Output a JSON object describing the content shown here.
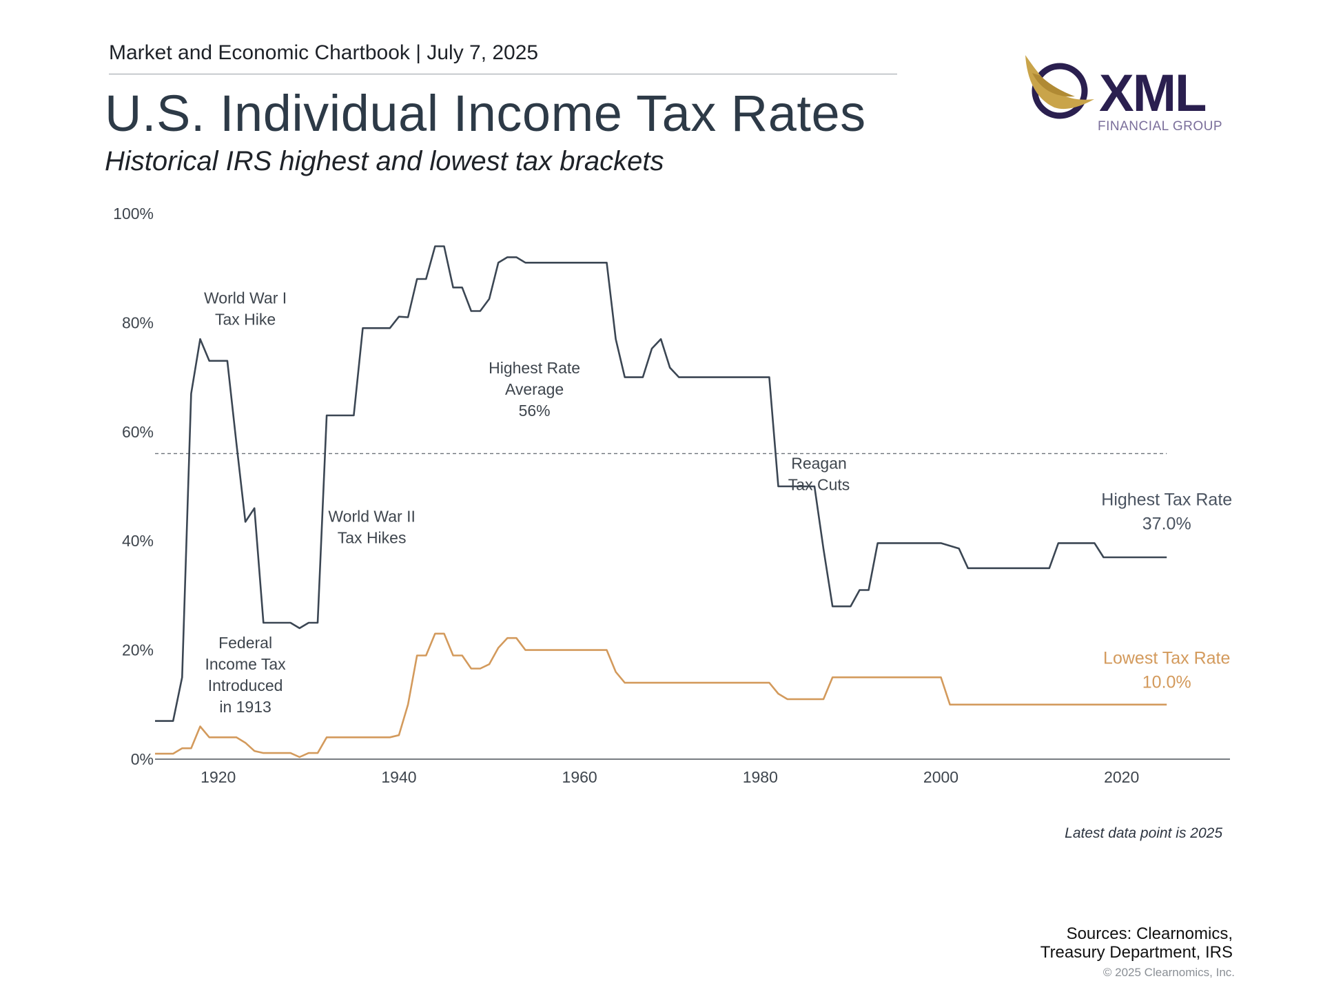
{
  "header": {
    "label": "Market and Economic Chartbook | July 7, 2025",
    "title": "U.S. Individual Income Tax Rates",
    "subtitle": "Historical IRS highest and lowest tax brackets"
  },
  "logo": {
    "word": "XML",
    "sub": "FINANCIAL GROUP",
    "gold": "#c9a44a",
    "navy": "#2a1f4f"
  },
  "footer": {
    "note": "Latest data point is 2025",
    "sources_line1": "Sources: Clearnomics,",
    "sources_line2": "Treasury Department, IRS",
    "copyright": "© 2025 Clearnomics, Inc."
  },
  "chart_data": {
    "type": "line",
    "xlim": [
      1913,
      2032
    ],
    "ylim": [
      0,
      100
    ],
    "x_ticks": [
      1920,
      1940,
      1960,
      1980,
      2000,
      2020
    ],
    "y_ticks": [
      0,
      20,
      40,
      60,
      80,
      100
    ],
    "y_tick_labels": [
      "0%",
      "20%",
      "40%",
      "60%",
      "80%",
      "100%"
    ],
    "grid": false,
    "series": [
      {
        "name": "Highest Tax Rate",
        "end_value_label": "37.0%",
        "color": "#3b4653",
        "points": [
          [
            1913,
            7
          ],
          [
            1915,
            7
          ],
          [
            1916,
            15
          ],
          [
            1917,
            67
          ],
          [
            1918,
            77
          ],
          [
            1919,
            73
          ],
          [
            1921,
            73
          ],
          [
            1922,
            58
          ],
          [
            1923,
            43.5
          ],
          [
            1924,
            46
          ],
          [
            1925,
            25
          ],
          [
            1928,
            25
          ],
          [
            1929,
            24
          ],
          [
            1930,
            25
          ],
          [
            1931,
            25
          ],
          [
            1932,
            63
          ],
          [
            1935,
            63
          ],
          [
            1936,
            79
          ],
          [
            1939,
            79
          ],
          [
            1940,
            81.1
          ],
          [
            1941,
            81
          ],
          [
            1942,
            88
          ],
          [
            1943,
            88
          ],
          [
            1944,
            94
          ],
          [
            1945,
            94
          ],
          [
            1946,
            86.45
          ],
          [
            1947,
            86.45
          ],
          [
            1948,
            82.13
          ],
          [
            1949,
            82.13
          ],
          [
            1950,
            84.36
          ],
          [
            1951,
            91
          ],
          [
            1952,
            92
          ],
          [
            1953,
            92
          ],
          [
            1954,
            91
          ],
          [
            1963,
            91
          ],
          [
            1964,
            77
          ],
          [
            1965,
            70
          ],
          [
            1967,
            70
          ],
          [
            1968,
            75.25
          ],
          [
            1969,
            77
          ],
          [
            1970,
            71.75
          ],
          [
            1971,
            70
          ],
          [
            1981,
            70
          ],
          [
            1982,
            50
          ],
          [
            1986,
            50
          ],
          [
            1987,
            38.5
          ],
          [
            1988,
            28
          ],
          [
            1990,
            28
          ],
          [
            1991,
            31
          ],
          [
            1992,
            31
          ],
          [
            1993,
            39.6
          ],
          [
            2000,
            39.6
          ],
          [
            2002,
            38.6
          ],
          [
            2003,
            35
          ],
          [
            2012,
            35
          ],
          [
            2013,
            39.6
          ],
          [
            2017,
            39.6
          ],
          [
            2018,
            37
          ],
          [
            2025,
            37
          ]
        ]
      },
      {
        "name": "Lowest Tax Rate",
        "end_value_label": "10.0%",
        "color": "#d39a5c",
        "points": [
          [
            1913,
            1
          ],
          [
            1915,
            1
          ],
          [
            1916,
            2
          ],
          [
            1917,
            2
          ],
          [
            1918,
            6
          ],
          [
            1919,
            4
          ],
          [
            1922,
            4
          ],
          [
            1923,
            3
          ],
          [
            1924,
            1.5
          ],
          [
            1925,
            1.125
          ],
          [
            1928,
            1.125
          ],
          [
            1929,
            0.375
          ],
          [
            1930,
            1.125
          ],
          [
            1931,
            1.125
          ],
          [
            1932,
            4
          ],
          [
            1939,
            4
          ],
          [
            1940,
            4.4
          ],
          [
            1941,
            10
          ],
          [
            1942,
            19
          ],
          [
            1943,
            19
          ],
          [
            1944,
            23
          ],
          [
            1945,
            23
          ],
          [
            1946,
            19
          ],
          [
            1947,
            19
          ],
          [
            1948,
            16.6
          ],
          [
            1949,
            16.6
          ],
          [
            1950,
            17.4
          ],
          [
            1951,
            20.4
          ],
          [
            1952,
            22.2
          ],
          [
            1953,
            22.2
          ],
          [
            1954,
            20
          ],
          [
            1963,
            20
          ],
          [
            1964,
            16
          ],
          [
            1965,
            14
          ],
          [
            1981,
            14
          ],
          [
            1982,
            12
          ],
          [
            1983,
            11
          ],
          [
            1987,
            11
          ],
          [
            1988,
            15
          ],
          [
            2000,
            15
          ],
          [
            2001,
            10
          ],
          [
            2025,
            10
          ]
        ]
      }
    ],
    "reference_line": {
      "value": 56,
      "style": "dashed"
    },
    "annotations": [
      {
        "x": 1923,
        "y_top": 83.5,
        "lines": [
          "World War I",
          "Tax Hike"
        ]
      },
      {
        "x": 1937,
        "y_top": 43.5,
        "lines": [
          "World War II",
          "Tax Hikes"
        ]
      },
      {
        "x": 1955,
        "y_top": 70.7,
        "lines": [
          "Highest Rate",
          "Average",
          "56%"
        ]
      },
      {
        "x": 1923,
        "y_top": 20.3,
        "lines": [
          "Federal",
          "Income Tax",
          "Introduced",
          "in 1913"
        ]
      },
      {
        "x": 1986.5,
        "y_top": 53.2,
        "lines": [
          "Reagan",
          "Tax Cuts"
        ]
      }
    ]
  }
}
